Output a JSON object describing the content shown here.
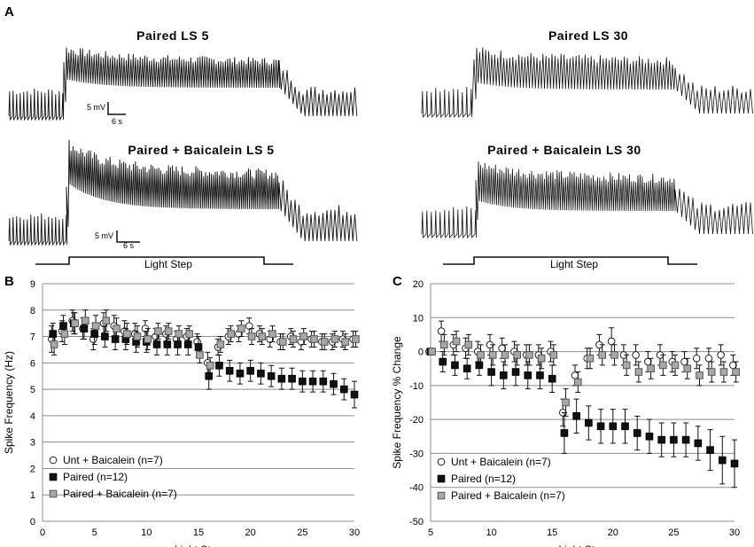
{
  "panels": {
    "a": "A",
    "b": "B",
    "c": "C"
  },
  "traces": {
    "titles": [
      "Paired LS 5",
      "Paired LS 30",
      "Paired + Baicalein LS 5",
      "Paired + Baicalein LS 30"
    ],
    "scale_mv": "5 mV",
    "scale_s": "6 s",
    "light_step_label": "Light Step"
  },
  "colors": {
    "open": "#ffffff",
    "paired": "#111111",
    "baicalein": "#a8a8a8",
    "grid": "#8c8c8c",
    "trace_dark": "#111111",
    "trace_light": "#888888"
  },
  "chart_data": [
    {
      "type": "scatter",
      "panel": "B",
      "xlabel": "Light Step",
      "ylabel": "Spike Frequency (Hz)",
      "xlim": [
        0,
        30
      ],
      "ylim": [
        0,
        9
      ],
      "xticks": [
        0,
        5,
        10,
        15,
        20,
        25,
        30
      ],
      "yticks": [
        0,
        1,
        2,
        3,
        4,
        5,
        6,
        7,
        8,
        9
      ],
      "grid": "horizontal",
      "legend_position": "bottom-left",
      "x": [
        1,
        2,
        3,
        4,
        5,
        6,
        7,
        8,
        9,
        10,
        11,
        12,
        13,
        14,
        15,
        16,
        17,
        18,
        19,
        20,
        21,
        22,
        23,
        24,
        25,
        26,
        27,
        28,
        29,
        30
      ],
      "series": [
        {
          "name": "Unt + Baicalein (n=7)",
          "marker": "circle-open",
          "values": [
            6.9,
            7.2,
            7.6,
            7.3,
            6.9,
            7.5,
            7.4,
            7.2,
            7.1,
            7.3,
            7.0,
            7.1,
            6.9,
            7.0,
            6.8,
            6.0,
            6.6,
            7.0,
            7.1,
            7.4,
            7.1,
            6.9,
            6.8,
            7.0,
            6.8,
            6.9,
            6.8,
            6.8,
            6.9,
            6.9
          ],
          "errors": [
            0.5,
            0.4,
            0.4,
            0.4,
            0.4,
            0.4,
            0.4,
            0.4,
            0.4,
            0.3,
            0.3,
            0.3,
            0.3,
            0.3,
            0.3,
            0.4,
            0.3,
            0.3,
            0.3,
            0.3,
            0.3,
            0.3,
            0.3,
            0.3,
            0.3,
            0.3,
            0.3,
            0.3,
            0.3,
            0.3
          ]
        },
        {
          "name": "Paired (n=12)",
          "marker": "square-filled",
          "values": [
            7.1,
            7.4,
            7.5,
            7.3,
            7.1,
            7.0,
            6.9,
            6.9,
            6.8,
            6.8,
            6.7,
            6.7,
            6.7,
            6.7,
            6.6,
            5.5,
            5.9,
            5.7,
            5.6,
            5.7,
            5.6,
            5.5,
            5.4,
            5.4,
            5.3,
            5.3,
            5.3,
            5.2,
            5.0,
            4.8
          ],
          "errors": [
            0.4,
            0.4,
            0.4,
            0.4,
            0.4,
            0.4,
            0.4,
            0.4,
            0.4,
            0.4,
            0.4,
            0.4,
            0.4,
            0.4,
            0.4,
            0.5,
            0.4,
            0.4,
            0.4,
            0.4,
            0.4,
            0.4,
            0.4,
            0.4,
            0.4,
            0.4,
            0.4,
            0.4,
            0.4,
            0.5
          ]
        },
        {
          "name": "Paired + Baicalein (n=7)",
          "marker": "square-gray",
          "values": [
            6.7,
            7.1,
            7.5,
            7.6,
            7.4,
            7.6,
            7.3,
            7.1,
            7.0,
            6.9,
            7.2,
            7.2,
            7.1,
            7.1,
            6.3,
            5.9,
            6.7,
            7.1,
            7.3,
            7.0,
            7.0,
            7.1,
            6.8,
            6.9,
            7.0,
            6.9,
            6.8,
            6.9,
            6.8,
            6.9
          ],
          "errors": [
            0.4,
            0.4,
            0.4,
            0.4,
            0.4,
            0.4,
            0.4,
            0.4,
            0.4,
            0.4,
            0.3,
            0.3,
            0.3,
            0.3,
            0.3,
            0.3,
            0.3,
            0.3,
            0.3,
            0.3,
            0.3,
            0.3,
            0.3,
            0.3,
            0.3,
            0.3,
            0.3,
            0.3,
            0.3,
            0.3
          ]
        }
      ]
    },
    {
      "type": "scatter",
      "panel": "C",
      "xlabel": "Light Step",
      "ylabel": "Spike Frequency % Change",
      "xlim": [
        5,
        30
      ],
      "ylim": [
        -50,
        20
      ],
      "xticks": [
        5,
        10,
        15,
        20,
        25,
        30
      ],
      "yticks": [
        -50,
        -40,
        -30,
        -20,
        -10,
        0,
        10,
        20
      ],
      "grid": "horizontal",
      "legend_position": "bottom-left",
      "x": [
        5,
        6,
        7,
        8,
        9,
        10,
        11,
        12,
        13,
        14,
        15,
        16,
        17,
        18,
        19,
        20,
        21,
        22,
        23,
        24,
        25,
        26,
        27,
        28,
        29,
        30
      ],
      "series": [
        {
          "name": "Unt + Baicalein (n=7)",
          "marker": "circle-open",
          "values": [
            0,
            6,
            2,
            1,
            0,
            2,
            1,
            0,
            -1,
            -1,
            0,
            -18,
            -7,
            -2,
            2,
            3,
            -1,
            -1,
            -3,
            -1,
            -3,
            -3,
            -2,
            -2,
            -1,
            -4
          ],
          "errors": [
            0,
            3,
            3,
            3,
            3,
            3,
            3,
            3,
            3,
            3,
            3,
            4,
            3,
            3,
            3,
            4,
            3,
            3,
            3,
            3,
            3,
            3,
            3,
            3,
            3,
            3
          ]
        },
        {
          "name": "Paired (n=12)",
          "marker": "square-filled",
          "values": [
            0,
            -3,
            -4,
            -5,
            -4,
            -6,
            -7,
            -6,
            -7,
            -7,
            -8,
            -24,
            -19,
            -21,
            -22,
            -22,
            -22,
            -24,
            -25,
            -26,
            -26,
            -26,
            -27,
            -29,
            -32,
            -33
          ],
          "errors": [
            0,
            3,
            3,
            3,
            3,
            4,
            4,
            4,
            4,
            4,
            4,
            6,
            5,
            5,
            5,
            5,
            5,
            5,
            5,
            5,
            5,
            5,
            5,
            6,
            7,
            7
          ]
        },
        {
          "name": "Paired + Baicalein (n=7)",
          "marker": "square-gray",
          "values": [
            0,
            2,
            3,
            2,
            -1,
            -1,
            -1,
            -1,
            -1,
            -2,
            -1,
            -15,
            -9,
            -2,
            -1,
            -1,
            -4,
            -6,
            -5,
            -4,
            -4,
            -5,
            -7,
            -6,
            -6,
            -6
          ],
          "errors": [
            0,
            3,
            3,
            3,
            3,
            3,
            3,
            3,
            3,
            3,
            3,
            4,
            3,
            3,
            3,
            3,
            3,
            3,
            3,
            3,
            3,
            3,
            3,
            3,
            3,
            3
          ]
        }
      ]
    }
  ]
}
